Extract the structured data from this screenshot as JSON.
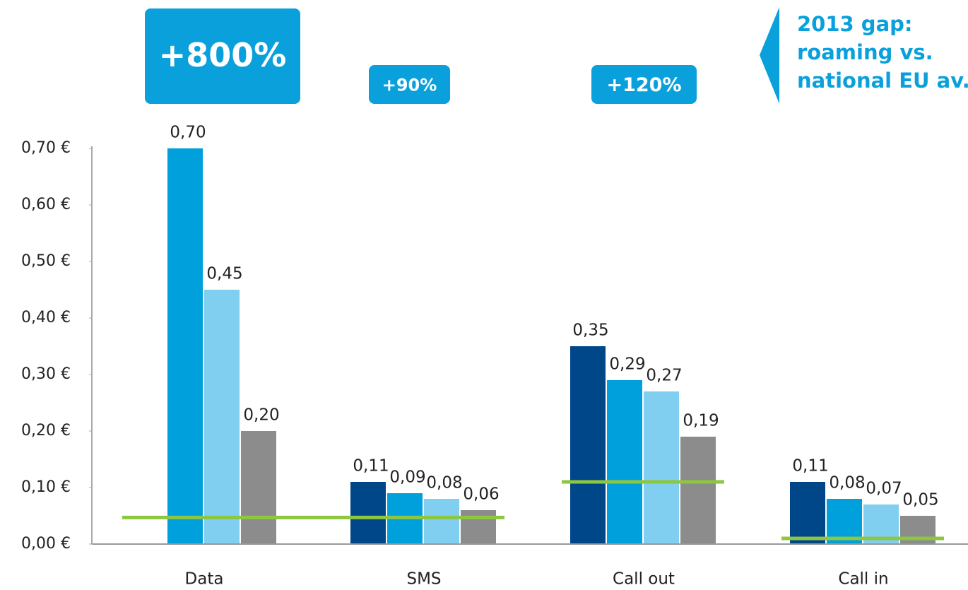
{
  "chart_data": {
    "type": "bar",
    "categories": [
      "Data",
      "SMS",
      "Call out",
      "Call in"
    ],
    "series": [
      {
        "color": "#00478a",
        "values": [
          null,
          0.11,
          0.35,
          0.11
        ],
        "value_labels": [
          null,
          "0,11",
          "0,35",
          "0,11"
        ]
      },
      {
        "color": "#00a0dc",
        "values": [
          0.7,
          0.09,
          0.29,
          0.08
        ],
        "value_labels": [
          "0,70",
          "0,09",
          "0,29",
          "0,08"
        ]
      },
      {
        "color": "#80cff1",
        "values": [
          0.45,
          0.08,
          0.27,
          0.07
        ],
        "value_labels": [
          "0,45",
          "0,08",
          "0,27",
          "0,07"
        ]
      },
      {
        "color": "#8c8c8c",
        "values": [
          0.2,
          0.06,
          0.19,
          0.05
        ],
        "value_labels": [
          "0,20",
          "0,06",
          "0,19",
          "0,05"
        ]
      }
    ],
    "national_average": {
      "color": "#8dc63f",
      "values": [
        0.047,
        0.047,
        0.11,
        0.01
      ]
    },
    "gap_labels": [
      "+800%",
      "+90%",
      "+120%"
    ],
    "legend_note": [
      "2013 gap:",
      "roaming vs.",
      "national EU av."
    ],
    "ylim": [
      0,
      0.7
    ],
    "yticks": [
      {
        "value": 0,
        "label": "0,00 €"
      },
      {
        "value": 0.1,
        "label": "0,10 €"
      },
      {
        "value": 0.2,
        "label": "0,20 €"
      },
      {
        "value": 0.3,
        "label": "0,30 €"
      },
      {
        "value": 0.4,
        "label": "0,40 €"
      },
      {
        "value": 0.5,
        "label": "0,50 €"
      },
      {
        "value": 0.6,
        "label": "0,60 €"
      },
      {
        "value": 0.7,
        "label": "0,70 €"
      }
    ]
  }
}
